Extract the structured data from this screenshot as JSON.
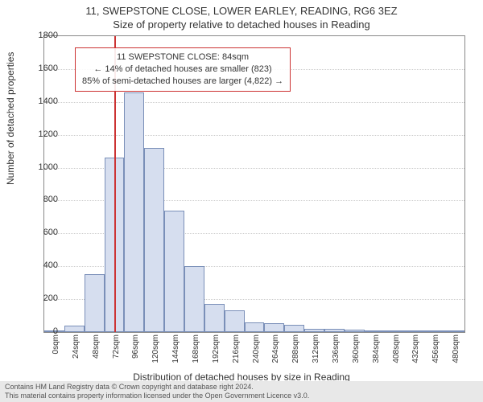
{
  "title": "11, SWEPSTONE CLOSE, LOWER EARLEY, READING, RG6 3EZ",
  "subtitle": "Size of property relative to detached houses in Reading",
  "ylabel": "Number of detached properties",
  "xlabel": "Distribution of detached houses by size in Reading",
  "footer1": "Contains HM Land Registry data © Crown copyright and database right 2024.",
  "footer2": "This material contains property information licensed under the Open Government Licence v3.0.",
  "chart": {
    "type": "histogram",
    "ylim": [
      0,
      1800
    ],
    "ytick_step": 200,
    "xtick_step": 24,
    "xlim": [
      0,
      504
    ],
    "xtick_unit": "sqm",
    "bar_fill": "#d6deef",
    "bar_border": "#7a8fb8",
    "grid_color": "#cccccc",
    "axis_color": "#888888",
    "background": "#ffffff",
    "bins": [
      {
        "x": 0,
        "v": 10
      },
      {
        "x": 24,
        "v": 40
      },
      {
        "x": 48,
        "v": 350
      },
      {
        "x": 72,
        "v": 1060
      },
      {
        "x": 96,
        "v": 1460
      },
      {
        "x": 120,
        "v": 1120
      },
      {
        "x": 144,
        "v": 740
      },
      {
        "x": 168,
        "v": 400
      },
      {
        "x": 192,
        "v": 170
      },
      {
        "x": 216,
        "v": 130
      },
      {
        "x": 240,
        "v": 60
      },
      {
        "x": 264,
        "v": 55
      },
      {
        "x": 288,
        "v": 45
      },
      {
        "x": 312,
        "v": 20
      },
      {
        "x": 336,
        "v": 20
      },
      {
        "x": 360,
        "v": 15
      },
      {
        "x": 384,
        "v": 10
      },
      {
        "x": 408,
        "v": 5
      },
      {
        "x": 432,
        "v": 10
      },
      {
        "x": 456,
        "v": 5
      },
      {
        "x": 480,
        "v": 5
      }
    ],
    "refline_x": 84,
    "refline_color": "#cc3333",
    "infobox": {
      "line1": "11 SWEPSTONE CLOSE: 84sqm",
      "line2": "← 14% of detached houses are smaller (823)",
      "line3": "85% of semi-detached houses are larger (4,822) →",
      "border_color": "#cc3333",
      "fontsize": 11
    }
  }
}
